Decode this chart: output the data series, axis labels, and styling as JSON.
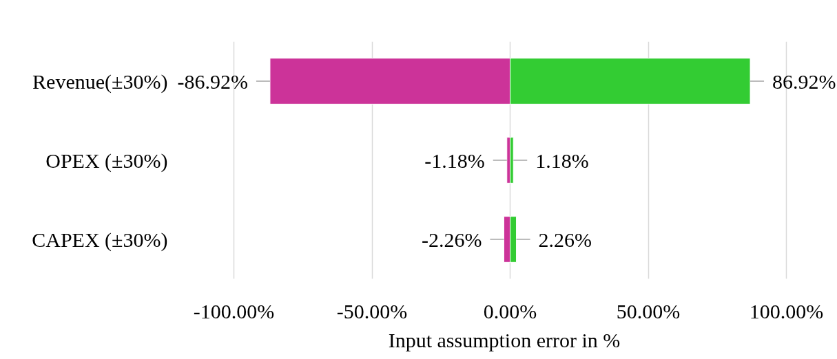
{
  "chart_data": {
    "type": "bar",
    "orientation": "horizontal",
    "stacked": true,
    "categories": [
      "Revenue(±30%)",
      "OPEX (±30%)",
      "CAPEX (±30%)"
    ],
    "series": [
      {
        "color": "#cc3399",
        "values": [
          -86.92,
          -1.18,
          -2.26
        ],
        "value_labels": [
          "-86.92%",
          "-1.18%",
          "-2.26%"
        ]
      },
      {
        "color": "#33cc33",
        "values": [
          86.92,
          1.18,
          2.26
        ],
        "value_labels": [
          "86.92%",
          "1.18%",
          "2.26%"
        ]
      }
    ],
    "xlabel": "Input assumption error in %",
    "xlim": [
      -100,
      100
    ],
    "xticks": [
      {
        "value": -100,
        "label": "-100.00%"
      },
      {
        "value": -50,
        "label": "-50.00%"
      },
      {
        "value": 0,
        "label": "0.00%"
      },
      {
        "value": 50,
        "label": "50.00%"
      },
      {
        "value": 100,
        "label": "100.00%"
      }
    ],
    "grid": "x"
  }
}
